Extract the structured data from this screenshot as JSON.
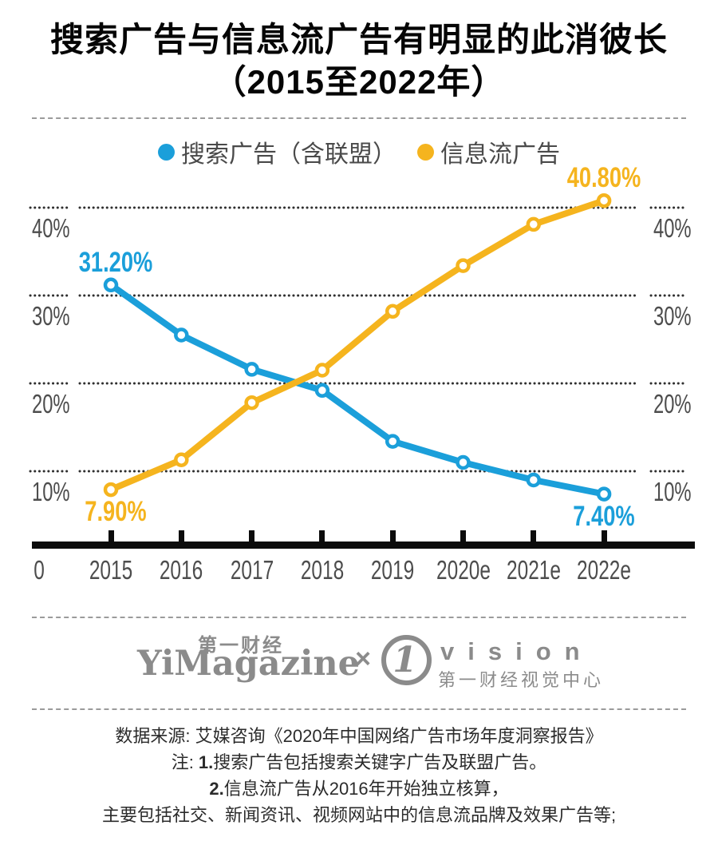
{
  "title": {
    "line1": "搜索广告与信息流广告有明显的此消彼长",
    "line2": "（2015至2022年）"
  },
  "chart_data": {
    "type": "line",
    "title": "搜索广告与信息流广告有明显的此消彼长（2015至2022年）",
    "categories": [
      "2015",
      "2016",
      "2017",
      "2018",
      "2019",
      "2020e",
      "2021e",
      "2022e"
    ],
    "x_origin_label": "0",
    "ylim": [
      0,
      42
    ],
    "yticks": [
      {
        "value": 40,
        "label": "40%"
      },
      {
        "value": 30,
        "label": "30%"
      },
      {
        "value": 20,
        "label": "20%"
      },
      {
        "value": 10,
        "label": "10%"
      }
    ],
    "grid": "dotted-horizontal",
    "legend_position": "top",
    "series": [
      {
        "name": "搜索广告（含联盟）",
        "color": "#1b9fda",
        "values": [
          31.2,
          25.5,
          21.6,
          19.2,
          13.4,
          11.0,
          9.0,
          7.4
        ],
        "point_labels": [
          {
            "index": 0,
            "text": "31.20%",
            "placement": "above"
          },
          {
            "index": 7,
            "text": "7.40%",
            "placement": "below"
          }
        ]
      },
      {
        "name": "信息流广告",
        "color": "#f5b41e",
        "values": [
          7.9,
          11.3,
          17.8,
          21.5,
          28.2,
          33.4,
          38.1,
          40.8
        ],
        "point_labels": [
          {
            "index": 0,
            "text": "7.90%",
            "placement": "below"
          },
          {
            "index": 7,
            "text": "40.80%",
            "placement": "above"
          }
        ]
      }
    ]
  },
  "footer": {
    "brand_cn": "第一财经",
    "brand_en": "YiMagazine",
    "separator": "×",
    "vision_numeral": "1",
    "vision_en": "vision",
    "vision_cn": "第一财经视觉中心"
  },
  "notes": {
    "lines": [
      {
        "segments": [
          {
            "text": "数据来源: 艾媒咨询《2020年中国网络广告市场年度洞察报告》",
            "bold": false
          }
        ]
      },
      {
        "segments": [
          {
            "text": "注: ",
            "bold": false
          },
          {
            "text": "1.",
            "bold": true
          },
          {
            "text": "搜索广告包括搜索关键字广告及联盟广告。",
            "bold": false
          }
        ]
      },
      {
        "segments": [
          {
            "text": "2.",
            "bold": true
          },
          {
            "text": "信息流广告从2016年开始独立核算，",
            "bold": false
          }
        ]
      },
      {
        "segments": [
          {
            "text": "主要包括社交、新闻资讯、视频网站中的信息流品牌及效果广告等;",
            "bold": false
          }
        ]
      }
    ]
  }
}
